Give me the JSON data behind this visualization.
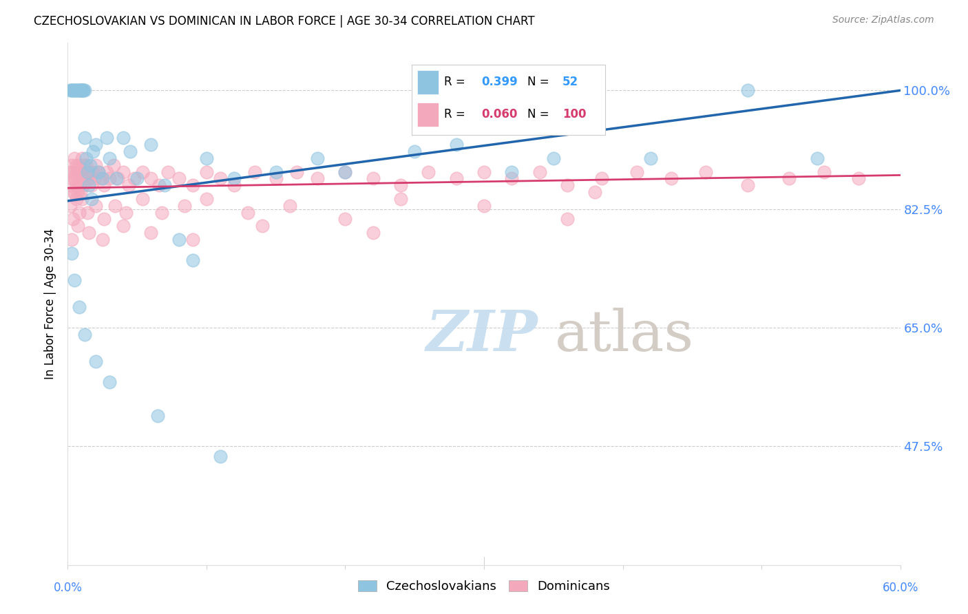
{
  "title": "CZECHOSLOVAKIAN VS DOMINICAN IN LABOR FORCE | AGE 30-34 CORRELATION CHART",
  "source": "Source: ZipAtlas.com",
  "ylabel": "In Labor Force | Age 30-34",
  "yticks": [
    0.475,
    0.65,
    0.825,
    1.0
  ],
  "ytick_labels": [
    "47.5%",
    "65.0%",
    "82.5%",
    "100.0%"
  ],
  "xmin": 0.0,
  "xmax": 0.6,
  "ymin": 0.3,
  "ymax": 1.07,
  "color_czech": "#8fc4e0",
  "color_dom": "#f4a8bc",
  "trendline_czech": "#2166ac",
  "trendline_dom": "#d63b6e",
  "watermark_zip_color": "#c5ddf0",
  "watermark_atlas_color": "#d0c8c0",
  "czech_x": [
    0.002,
    0.003,
    0.003,
    0.004,
    0.005,
    0.005,
    0.006,
    0.006,
    0.007,
    0.008,
    0.008,
    0.009,
    0.009,
    0.01,
    0.01,
    0.01,
    0.01,
    0.011,
    0.011,
    0.012,
    0.012,
    0.013,
    0.014,
    0.015,
    0.016,
    0.017,
    0.018,
    0.02,
    0.022,
    0.025,
    0.028,
    0.03,
    0.035,
    0.04,
    0.045,
    0.05,
    0.06,
    0.07,
    0.08,
    0.09,
    0.1,
    0.12,
    0.15,
    0.18,
    0.2,
    0.25,
    0.28,
    0.32,
    0.35,
    0.42,
    0.49,
    0.54
  ],
  "czech_y": [
    1.0,
    1.0,
    1.0,
    1.0,
    1.0,
    1.0,
    1.0,
    1.0,
    1.0,
    1.0,
    1.0,
    1.0,
    1.0,
    1.0,
    1.0,
    1.0,
    1.0,
    1.0,
    1.0,
    1.0,
    0.93,
    0.9,
    0.88,
    0.86,
    0.89,
    0.84,
    0.91,
    0.92,
    0.88,
    0.87,
    0.93,
    0.9,
    0.87,
    0.93,
    0.91,
    0.87,
    0.92,
    0.86,
    0.78,
    0.75,
    0.9,
    0.87,
    0.88,
    0.9,
    0.88,
    0.91,
    0.92,
    0.88,
    0.9,
    0.9,
    1.0,
    0.9
  ],
  "czech_y_low": [
    0.76,
    0.72,
    0.68,
    0.64,
    0.6,
    0.57,
    0.52,
    0.46
  ],
  "czech_x_low": [
    0.003,
    0.005,
    0.008,
    0.012,
    0.02,
    0.03,
    0.065,
    0.11
  ],
  "dom_x": [
    0.002,
    0.002,
    0.003,
    0.003,
    0.004,
    0.004,
    0.005,
    0.005,
    0.005,
    0.006,
    0.006,
    0.007,
    0.007,
    0.008,
    0.008,
    0.009,
    0.009,
    0.01,
    0.01,
    0.011,
    0.011,
    0.012,
    0.013,
    0.014,
    0.015,
    0.016,
    0.017,
    0.018,
    0.019,
    0.02,
    0.022,
    0.024,
    0.026,
    0.028,
    0.03,
    0.033,
    0.036,
    0.04,
    0.044,
    0.048,
    0.054,
    0.06,
    0.066,
    0.072,
    0.08,
    0.09,
    0.1,
    0.11,
    0.12,
    0.135,
    0.15,
    0.165,
    0.18,
    0.2,
    0.22,
    0.24,
    0.26,
    0.28,
    0.3,
    0.32,
    0.34,
    0.36,
    0.385,
    0.41,
    0.435,
    0.46,
    0.49,
    0.52,
    0.545,
    0.57,
    0.002,
    0.004,
    0.006,
    0.008,
    0.01,
    0.014,
    0.02,
    0.026,
    0.034,
    0.042,
    0.054,
    0.068,
    0.084,
    0.1,
    0.13,
    0.16,
    0.2,
    0.24,
    0.3,
    0.38,
    0.003,
    0.007,
    0.015,
    0.025,
    0.04,
    0.06,
    0.09,
    0.14,
    0.22,
    0.36
  ],
  "dom_y": [
    0.88,
    0.86,
    0.89,
    0.87,
    0.88,
    0.85,
    0.9,
    0.87,
    0.85,
    0.89,
    0.86,
    0.88,
    0.85,
    0.89,
    0.86,
    0.88,
    0.85,
    0.9,
    0.87,
    0.89,
    0.86,
    0.88,
    0.89,
    0.87,
    0.88,
    0.87,
    0.86,
    0.88,
    0.87,
    0.89,
    0.88,
    0.87,
    0.86,
    0.88,
    0.87,
    0.89,
    0.87,
    0.88,
    0.86,
    0.87,
    0.88,
    0.87,
    0.86,
    0.88,
    0.87,
    0.86,
    0.88,
    0.87,
    0.86,
    0.88,
    0.87,
    0.88,
    0.87,
    0.88,
    0.87,
    0.86,
    0.88,
    0.87,
    0.88,
    0.87,
    0.88,
    0.86,
    0.87,
    0.88,
    0.87,
    0.88,
    0.86,
    0.87,
    0.88,
    0.87,
    0.83,
    0.81,
    0.84,
    0.82,
    0.84,
    0.82,
    0.83,
    0.81,
    0.83,
    0.82,
    0.84,
    0.82,
    0.83,
    0.84,
    0.82,
    0.83,
    0.81,
    0.84,
    0.83,
    0.85,
    0.78,
    0.8,
    0.79,
    0.78,
    0.8,
    0.79,
    0.78,
    0.8,
    0.79,
    0.81
  ],
  "czech_trendline_x": [
    0.0,
    0.6
  ],
  "czech_trendline_y": [
    0.837,
    1.0
  ],
  "dom_trendline_x": [
    0.0,
    0.6
  ],
  "dom_trendline_y": [
    0.856,
    0.875
  ]
}
